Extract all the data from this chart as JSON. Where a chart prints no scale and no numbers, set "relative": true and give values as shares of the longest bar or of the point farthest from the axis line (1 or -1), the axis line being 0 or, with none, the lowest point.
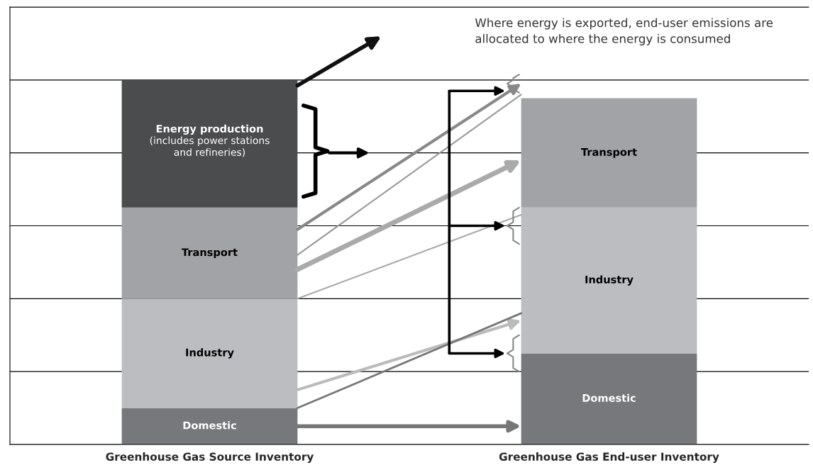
{
  "chart_data": {
    "type": "bar",
    "stacked": true,
    "relative": true,
    "grid": "y",
    "legend": false,
    "categories": [
      "Greenhouse Gas Source Inventory",
      "Greenhouse Gas End-user Inventory"
    ],
    "series": [
      {
        "name": "Domestic",
        "color": "#77787b",
        "values": [
          0.1,
          0.25
        ]
      },
      {
        "name": "Industry",
        "color": "#bcbdc0",
        "values": [
          0.3,
          0.4
        ]
      },
      {
        "name": "Transport",
        "color": "#a2a3a6",
        "values": [
          0.25,
          0.3
        ]
      },
      {
        "name": "Energy production",
        "color": "#4b4c4e",
        "values": [
          0.35,
          null
        ]
      }
    ],
    "annotations": [
      "(includes power stations and refineries)",
      "Where energy is exported, end-user emissions are allocated to where the energy is consumed"
    ]
  }
}
